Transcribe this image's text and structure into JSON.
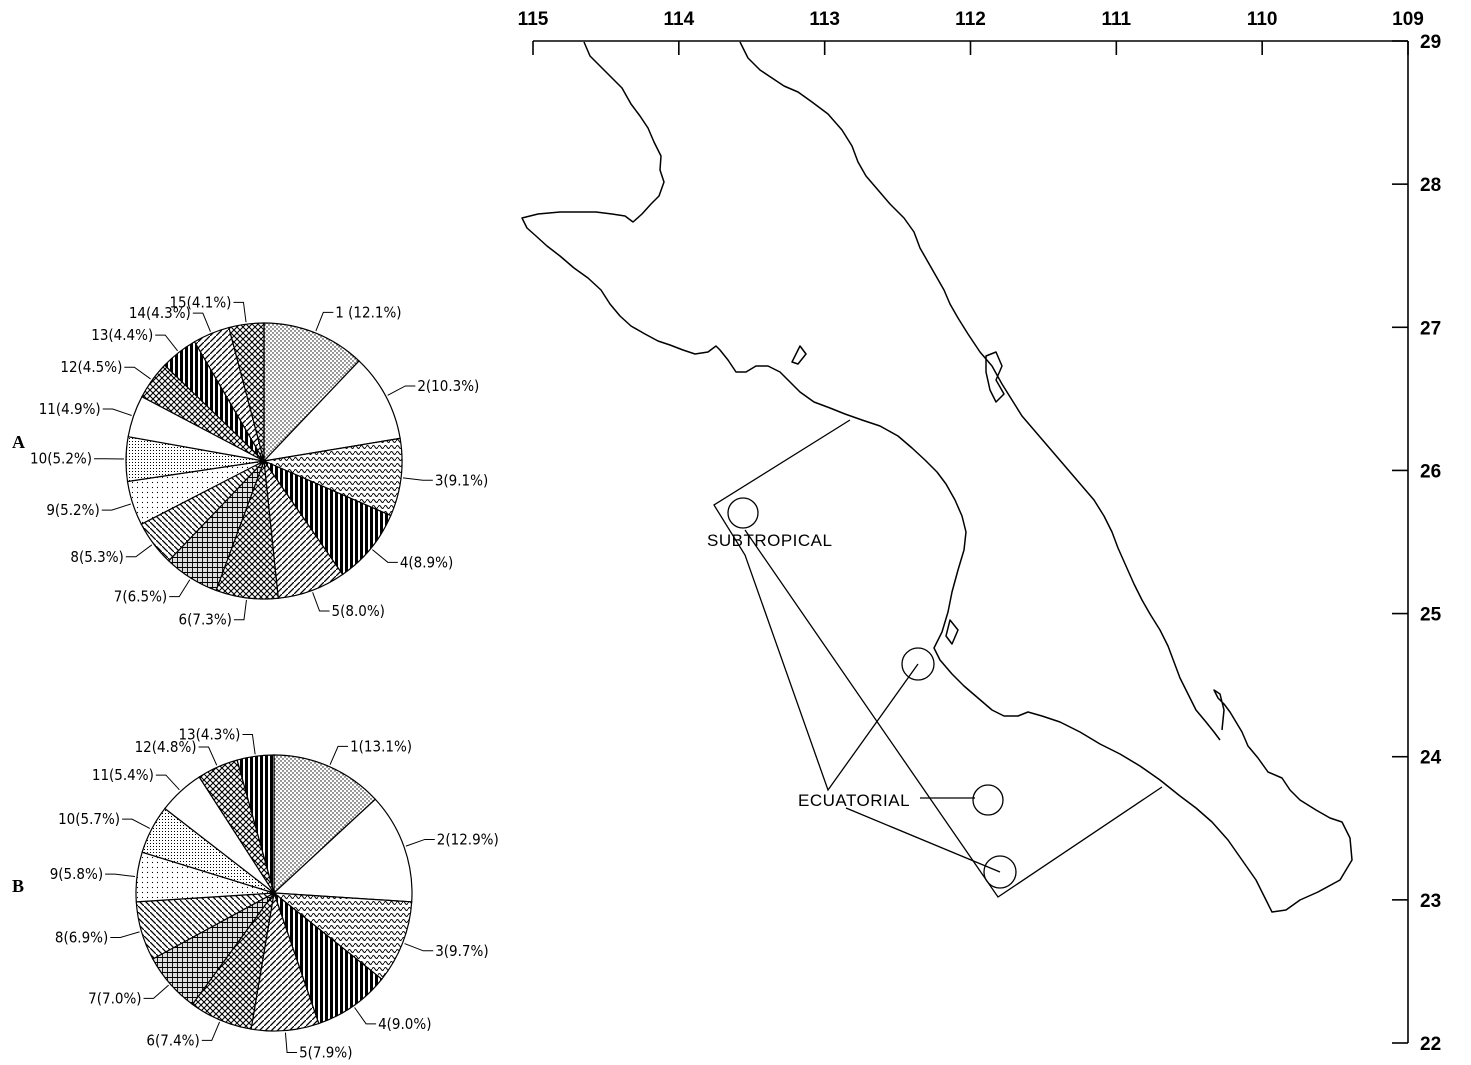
{
  "map": {
    "lon_ticks": [
      "115",
      "114",
      "113",
      "112",
      "111",
      "110",
      "109"
    ],
    "lat_ticks": [
      "29",
      "28",
      "27",
      "26",
      "25",
      "24",
      "23",
      "22"
    ],
    "zones": [
      {
        "label": "SUBTROPICAL"
      },
      {
        "label": "ECUATORIAL"
      }
    ]
  },
  "chart_data": [
    {
      "type": "pie",
      "title": "A",
      "labels": [
        "1 (12.1%)",
        "2(10.3%)",
        "3(9.1%)",
        "4(8.9%)",
        "5(8.0%)",
        "6(7.3%)",
        "7(6.5%)",
        "8(5.3%)",
        "9(5.2%)",
        "10(5.2%)",
        "11(4.9%)",
        "12(4.5%)",
        "13(4.4%)",
        "14(4.3%)",
        "15(4.1%)"
      ],
      "values": [
        12.1,
        10.3,
        9.1,
        8.9,
        8.0,
        7.3,
        6.5,
        5.3,
        5.2,
        5.2,
        4.9,
        4.5,
        4.4,
        4.3,
        4.1
      ]
    },
    {
      "type": "pie",
      "title": "B",
      "labels": [
        "1(13.1%)",
        "2(12.9%)",
        "3(9.7%)",
        "4(9.0%)",
        "5(7.9%)",
        "6(7.4%)",
        "7(7.0%)",
        "8(6.9%)",
        "9(5.8%)",
        "10(5.7%)",
        "11(5.4%)",
        "12(4.8%)",
        "13(4.3%)"
      ],
      "values": [
        13.1,
        12.9,
        9.7,
        9.0,
        7.9,
        7.4,
        7.0,
        6.9,
        5.8,
        5.7,
        5.4,
        4.8,
        4.3
      ]
    }
  ]
}
